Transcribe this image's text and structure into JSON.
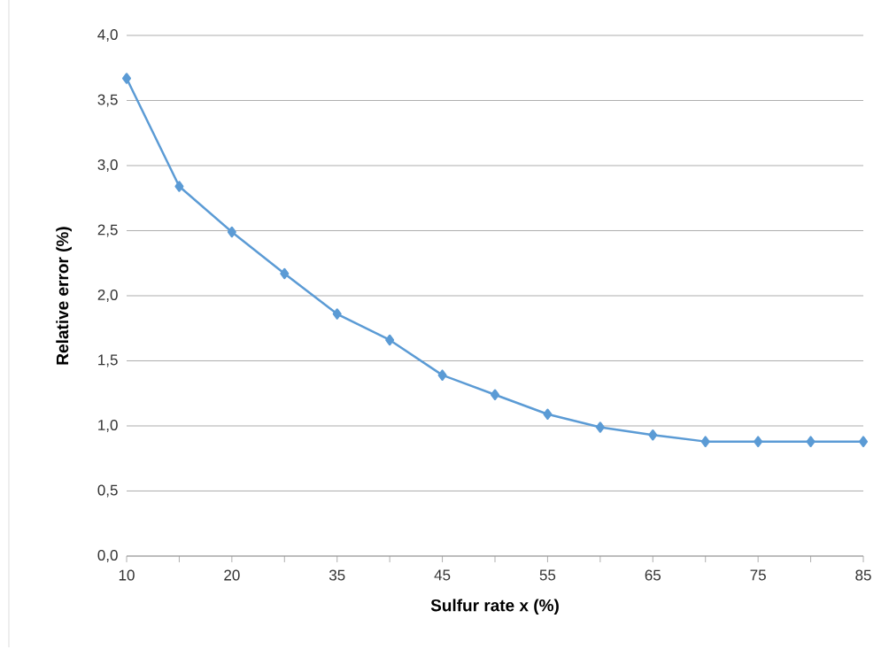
{
  "chart_data": {
    "type": "line",
    "xlabel": "Sulfur rate x (%)",
    "ylabel": "Relative error (%)",
    "categories": [
      "10",
      null,
      "20",
      null,
      "35",
      null,
      "45",
      null,
      "55",
      null,
      "65",
      null,
      "75",
      null,
      "85"
    ],
    "series": [
      {
        "color": "#5b9bd5",
        "values": [
          3.67,
          2.84,
          2.49,
          2.17,
          1.86,
          1.66,
          1.39,
          1.24,
          1.09,
          0.99,
          0.93,
          0.88,
          0.88,
          0.88,
          0.88
        ]
      }
    ],
    "ylim": [
      0,
      4
    ],
    "yticks": [
      {
        "value": 0,
        "label": "0,0"
      },
      {
        "value": 0.5,
        "label": "0,5"
      },
      {
        "value": 1,
        "label": "1,0"
      },
      {
        "value": 1.5,
        "label": "1,5"
      },
      {
        "value": 2,
        "label": "2,0"
      },
      {
        "value": 2.5,
        "label": "2,5"
      },
      {
        "value": 3,
        "label": "3,0"
      },
      {
        "value": 3.5,
        "label": "3,5"
      },
      {
        "value": 4,
        "label": "4,0"
      }
    ],
    "grid": "y",
    "marker": "diamond",
    "line_style": "solid"
  }
}
